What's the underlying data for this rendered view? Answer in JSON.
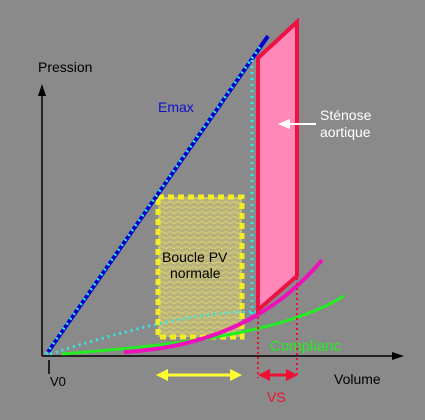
{
  "labels": {
    "y_axis": "Pression",
    "x_axis": "Volume",
    "origin": "V0",
    "emax": "Emax",
    "stenose_line1": "Sténose",
    "stenose_line2": "aortique",
    "boucle_line1": "Boucle PV",
    "boucle_line2": "normale",
    "compliance": "Complianc",
    "vs": "VS"
  },
  "colors": {
    "background": "#8a8a8a",
    "axis": "#000000",
    "emax_line": "#0000cc",
    "dotted_cyan": "#33e6e6",
    "stenose_fill": "#ff88b8",
    "stenose_border": "#ee1144",
    "normal_loop_border": "#f2ee22",
    "normal_loop_fill": "#b9b27a",
    "compliance_curve": "#22ee22",
    "magenta_curve": "#ee11bb",
    "yellow_arrow": "#ffff33",
    "vs_arrow": "#ee1133",
    "stenose_arrow": "#ffffff"
  }
}
